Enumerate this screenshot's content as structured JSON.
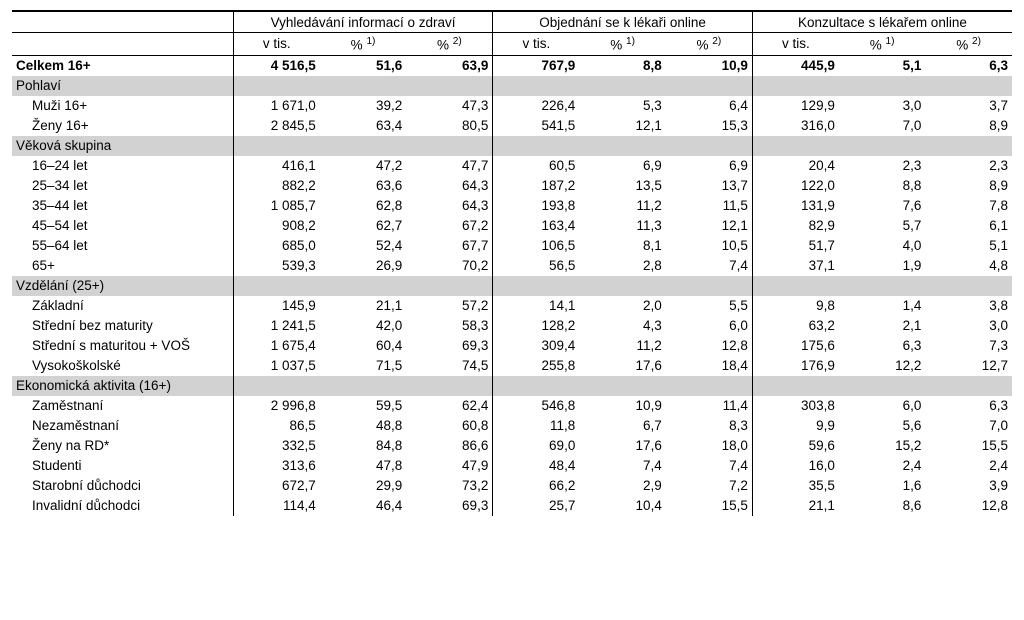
{
  "table": {
    "background_color": "#ffffff",
    "group_bg_color": "#d2d2d2",
    "font_family": "Arial",
    "font_size_pt": 10,
    "column_groups": [
      {
        "title": "Vyhledávání informací o zdraví",
        "subs": [
          "v tis.",
          "% ",
          "% "
        ],
        "sups": [
          "",
          "1)",
          "2)"
        ]
      },
      {
        "title": "Objednání se k lékaři online",
        "subs": [
          "v tis.",
          "% ",
          "% "
        ],
        "sups": [
          "",
          "1)",
          "2)"
        ]
      },
      {
        "title": "Konzultace s lékařem online",
        "subs": [
          "v tis.",
          "% ",
          "% "
        ],
        "sups": [
          "",
          "1)",
          "2)"
        ]
      }
    ],
    "total": {
      "label": "Celkem 16+",
      "values": [
        "4 516,5",
        "51,6",
        "63,9",
        "767,9",
        "8,8",
        "10,9",
        "445,9",
        "5,1",
        "6,3"
      ]
    },
    "sections": [
      {
        "title": "Pohlaví",
        "rows": [
          {
            "label": "Muži 16+",
            "values": [
              "1 671,0",
              "39,2",
              "47,3",
              "226,4",
              "5,3",
              "6,4",
              "129,9",
              "3,0",
              "3,7"
            ]
          },
          {
            "label": "Ženy 16+",
            "values": [
              "2 845,5",
              "63,4",
              "80,5",
              "541,5",
              "12,1",
              "15,3",
              "316,0",
              "7,0",
              "8,9"
            ]
          }
        ]
      },
      {
        "title": "Věková skupina",
        "rows": [
          {
            "label": "16–24 let",
            "values": [
              "416,1",
              "47,2",
              "47,7",
              "60,5",
              "6,9",
              "6,9",
              "20,4",
              "2,3",
              "2,3"
            ]
          },
          {
            "label": "25–34 let",
            "values": [
              "882,2",
              "63,6",
              "64,3",
              "187,2",
              "13,5",
              "13,7",
              "122,0",
              "8,8",
              "8,9"
            ]
          },
          {
            "label": "35–44 let",
            "values": [
              "1 085,7",
              "62,8",
              "64,3",
              "193,8",
              "11,2",
              "11,5",
              "131,9",
              "7,6",
              "7,8"
            ]
          },
          {
            "label": "45–54 let",
            "values": [
              "908,2",
              "62,7",
              "67,2",
              "163,4",
              "11,3",
              "12,1",
              "82,9",
              "5,7",
              "6,1"
            ]
          },
          {
            "label": "55–64 let",
            "values": [
              "685,0",
              "52,4",
              "67,7",
              "106,5",
              "8,1",
              "10,5",
              "51,7",
              "4,0",
              "5,1"
            ]
          },
          {
            "label": "65+",
            "values": [
              "539,3",
              "26,9",
              "70,2",
              "56,5",
              "2,8",
              "7,4",
              "37,1",
              "1,9",
              "4,8"
            ]
          }
        ]
      },
      {
        "title": "Vzdělání (25+)",
        "rows": [
          {
            "label": "Základní",
            "values": [
              "145,9",
              "21,1",
              "57,2",
              "14,1",
              "2,0",
              "5,5",
              "9,8",
              "1,4",
              "3,8"
            ]
          },
          {
            "label": "Střední bez maturity",
            "values": [
              "1 241,5",
              "42,0",
              "58,3",
              "128,2",
              "4,3",
              "6,0",
              "63,2",
              "2,1",
              "3,0"
            ]
          },
          {
            "label": "Střední s maturitou + VOŠ",
            "values": [
              "1 675,4",
              "60,4",
              "69,3",
              "309,4",
              "11,2",
              "12,8",
              "175,6",
              "6,3",
              "7,3"
            ]
          },
          {
            "label": "Vysokoškolské",
            "values": [
              "1 037,5",
              "71,5",
              "74,5",
              "255,8",
              "17,6",
              "18,4",
              "176,9",
              "12,2",
              "12,7"
            ]
          }
        ]
      },
      {
        "title": "Ekonomická aktivita (16+)",
        "rows": [
          {
            "label": "Zaměstnaní",
            "values": [
              "2 996,8",
              "59,5",
              "62,4",
              "546,8",
              "10,9",
              "11,4",
              "303,8",
              "6,0",
              "6,3"
            ]
          },
          {
            "label": "Nezaměstnaní",
            "values": [
              "86,5",
              "48,8",
              "60,8",
              "11,8",
              "6,7",
              "8,3",
              "9,9",
              "5,6",
              "7,0"
            ]
          },
          {
            "label": "Ženy na RD*",
            "values": [
              "332,5",
              "84,8",
              "86,6",
              "69,0",
              "17,6",
              "18,0",
              "59,6",
              "15,2",
              "15,5"
            ]
          },
          {
            "label": "Studenti",
            "values": [
              "313,6",
              "47,8",
              "47,9",
              "48,4",
              "7,4",
              "7,4",
              "16,0",
              "2,4",
              "2,4"
            ]
          },
          {
            "label": "Starobní důchodci",
            "values": [
              "672,7",
              "29,9",
              "73,2",
              "66,2",
              "2,9",
              "7,2",
              "35,5",
              "1,6",
              "3,9"
            ]
          },
          {
            "label": "Invalidní důchodci",
            "values": [
              "114,4",
              "46,4",
              "69,3",
              "25,7",
              "10,4",
              "15,5",
              "21,1",
              "8,6",
              "12,8"
            ]
          }
        ]
      }
    ]
  }
}
